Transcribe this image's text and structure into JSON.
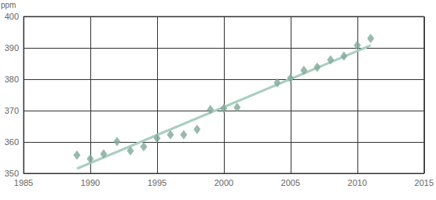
{
  "chart_data": {
    "type": "scatter",
    "ylabel": "ppm",
    "series": [
      {
        "type": "scatter",
        "marker": "diamond",
        "color": "#7fa897",
        "x": [
          1989,
          1990,
          1991,
          1992,
          1993,
          1994,
          1995,
          1996,
          1997,
          1998,
          1999,
          2000,
          2001,
          2004,
          2005,
          2006,
          2007,
          2008,
          2009,
          2010,
          2011
        ],
        "values": [
          355.8,
          354.6,
          356.2,
          360.1,
          357.2,
          358.5,
          361.2,
          362.3,
          362.3,
          364.0,
          370.3,
          370.7,
          371.0,
          378.9,
          380.3,
          382.8,
          383.8,
          386.2,
          387.4,
          390.8,
          393.0
        ]
      },
      {
        "type": "line",
        "line_style": "solid",
        "color": "#a9cfc0",
        "x": [
          1989,
          2011
        ],
        "values": [
          351.5,
          390.8
        ]
      }
    ],
    "xlim": [
      1985,
      2015
    ],
    "xticks": [
      1985,
      1990,
      1995,
      2000,
      2005,
      2010,
      2015
    ],
    "ylim": [
      350,
      400
    ],
    "yticks": [
      350,
      360,
      370,
      380,
      390,
      400
    ],
    "grid": true
  }
}
